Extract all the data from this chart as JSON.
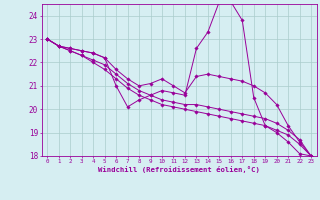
{
  "xlabel": "Windchill (Refroidissement éolien,°C)",
  "bg_color": "#d6eef2",
  "line_color": "#990099",
  "grid_color": "#aacccc",
  "x_min": 0,
  "x_max": 23,
  "y_min": 18,
  "y_max": 24.5,
  "series": [
    [
      23.0,
      22.7,
      22.6,
      22.5,
      22.4,
      22.2,
      21.0,
      20.1,
      20.4,
      20.6,
      20.8,
      20.7,
      20.6,
      22.6,
      23.3,
      24.6,
      24.6,
      23.8,
      20.5,
      19.3,
      19.0,
      18.6,
      18.1,
      18.0
    ],
    [
      23.0,
      22.7,
      22.6,
      22.5,
      22.4,
      22.2,
      21.7,
      21.3,
      21.0,
      21.1,
      21.3,
      21.0,
      20.7,
      21.4,
      21.5,
      21.4,
      21.3,
      21.2,
      21.0,
      20.7,
      20.2,
      19.3,
      18.6,
      18.0
    ],
    [
      23.0,
      22.7,
      22.5,
      22.3,
      22.1,
      21.9,
      21.5,
      21.1,
      20.8,
      20.6,
      20.4,
      20.3,
      20.2,
      20.2,
      20.1,
      20.0,
      19.9,
      19.8,
      19.7,
      19.6,
      19.4,
      19.1,
      18.7,
      18.0
    ],
    [
      23.0,
      22.7,
      22.5,
      22.3,
      22.0,
      21.7,
      21.3,
      20.9,
      20.6,
      20.4,
      20.2,
      20.1,
      20.0,
      19.9,
      19.8,
      19.7,
      19.6,
      19.5,
      19.4,
      19.3,
      19.1,
      18.9,
      18.5,
      18.0
    ]
  ],
  "yticks": [
    18,
    19,
    20,
    21,
    22,
    23,
    24
  ],
  "xtick_fontsize": 4.2,
  "ytick_fontsize": 5.5,
  "xlabel_fontsize": 5.2
}
